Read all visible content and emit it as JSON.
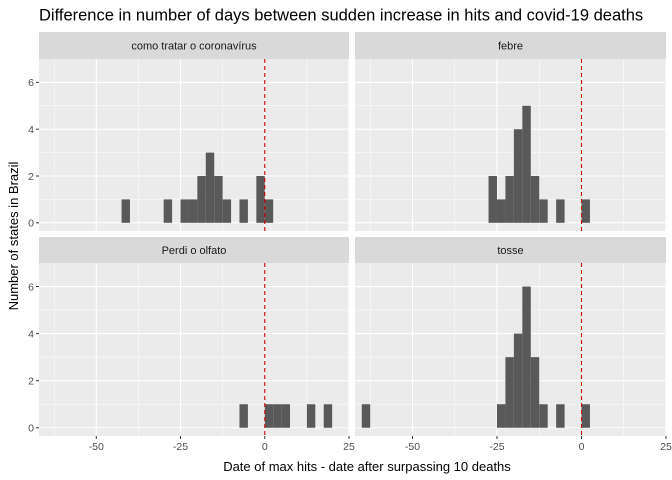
{
  "chart_data": {
    "type": "bar",
    "chart_kind": "faceted-histogram",
    "title": "Difference in number of days between sudden increase in hits and covid-19 deaths",
    "xlabel": "Date of max hits - date after surpassing 10 deaths",
    "ylabel": "Number of states in Brazil",
    "xlim": [
      -67,
      25
    ],
    "ylim": [
      -0.35,
      7.0
    ],
    "x_ticks": [
      -50,
      -25,
      0,
      25
    ],
    "y_ticks": [
      0,
      2,
      4,
      6
    ],
    "x_tick_labels": [
      "-50",
      "-25",
      "0",
      "25"
    ],
    "y_tick_labels": [
      "0",
      "2",
      "4",
      "6"
    ],
    "bin_width": 2.5,
    "reference_line": {
      "x": 0,
      "color": "#cc0000",
      "style": "dashed"
    },
    "grid": true,
    "legend": "none",
    "colors": {
      "panel_background": "#ebebeb",
      "strip_background": "#d9d9d9",
      "grid": "#ffffff",
      "bar": "#595959",
      "reference_line": "#cc0000"
    },
    "facets": [
      {
        "label": "como tratar o coronavírus",
        "bins": [
          {
            "x": -41.25,
            "count": 1
          },
          {
            "x": -28.75,
            "count": 1
          },
          {
            "x": -23.75,
            "count": 1
          },
          {
            "x": -21.25,
            "count": 1
          },
          {
            "x": -18.75,
            "count": 2
          },
          {
            "x": -16.25,
            "count": 3
          },
          {
            "x": -13.75,
            "count": 2
          },
          {
            "x": -11.25,
            "count": 1
          },
          {
            "x": -6.25,
            "count": 1
          },
          {
            "x": -1.25,
            "count": 2
          },
          {
            "x": 1.25,
            "count": 1
          }
        ]
      },
      {
        "label": "febre",
        "bins": [
          {
            "x": -26.25,
            "count": 2
          },
          {
            "x": -23.75,
            "count": 1
          },
          {
            "x": -21.25,
            "count": 2
          },
          {
            "x": -18.75,
            "count": 4
          },
          {
            "x": -16.25,
            "count": 5
          },
          {
            "x": -13.75,
            "count": 2
          },
          {
            "x": -11.25,
            "count": 1
          },
          {
            "x": -6.25,
            "count": 1
          },
          {
            "x": 1.25,
            "count": 1
          }
        ]
      },
      {
        "label": "Perdi o olfato",
        "bins": [
          {
            "x": -6.25,
            "count": 1
          },
          {
            "x": 1.25,
            "count": 1
          },
          {
            "x": 3.75,
            "count": 1
          },
          {
            "x": 6.25,
            "count": 1
          },
          {
            "x": 13.75,
            "count": 1
          },
          {
            "x": 18.75,
            "count": 1
          }
        ]
      },
      {
        "label": "tosse",
        "bins": [
          {
            "x": -63.75,
            "count": 1
          },
          {
            "x": -23.75,
            "count": 1
          },
          {
            "x": -21.25,
            "count": 3
          },
          {
            "x": -18.75,
            "count": 4
          },
          {
            "x": -16.25,
            "count": 6
          },
          {
            "x": -13.75,
            "count": 3
          },
          {
            "x": -11.25,
            "count": 1
          },
          {
            "x": -6.25,
            "count": 1
          },
          {
            "x": 1.25,
            "count": 1
          }
        ]
      }
    ]
  }
}
